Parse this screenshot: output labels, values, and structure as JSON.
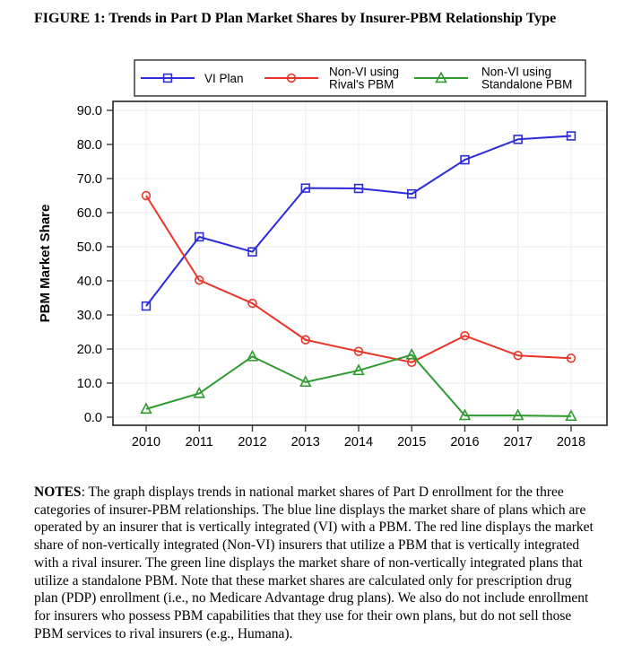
{
  "title": "FIGURE 1: Trends in Part D Plan Market Shares by Insurer-PBM Relationship Type",
  "chart_data": {
    "type": "line",
    "x": [
      2010,
      2011,
      2012,
      2013,
      2014,
      2015,
      2016,
      2017,
      2018
    ],
    "series": [
      {
        "name": "VI Plan",
        "label_lines": [
          "VI Plan"
        ],
        "color": "#2c2cd8",
        "marker": "square",
        "values": [
          32.6,
          52.9,
          48.5,
          67.2,
          67.1,
          65.5,
          75.5,
          81.5,
          82.5
        ]
      },
      {
        "name": "Non-VI using Rival's PBM",
        "label_lines": [
          "Non-VI using",
          "Rival's PBM"
        ],
        "color": "#e93428",
        "marker": "circle",
        "values": [
          65.0,
          40.2,
          33.4,
          22.7,
          19.3,
          16.1,
          23.9,
          18.1,
          17.3
        ]
      },
      {
        "name": "Non-VI using Standalone PBM",
        "label_lines": [
          "Non-VI using",
          "Standalone PBM"
        ],
        "color": "#2e9b2e",
        "marker": "triangle",
        "values": [
          2.4,
          7.0,
          17.8,
          10.3,
          13.7,
          18.3,
          0.5,
          0.5,
          0.3
        ]
      }
    ],
    "ylabel": "PBM Market Share",
    "yticks": [
      0,
      10,
      20,
      30,
      40,
      50,
      60,
      70,
      80,
      90
    ],
    "ylim": [
      -2.5,
      92.5
    ],
    "grid": true,
    "legend_position": "top",
    "colors": {
      "axis": "#3a3a3a",
      "grid": "#ececec",
      "text": "#000000",
      "background": "#ffffff"
    }
  },
  "notes": {
    "label": "NOTES",
    "separator": ": ",
    "text": "The graph displays trends in national market shares of Part D enrollment for the three categories of insurer-PBM relationships. The blue line displays the market share of plans which are operated by an insurer that is vertically integrated (VI) with a PBM. The red line displays the market share of non-vertically integrated (Non-VI) insurers that utilize a PBM that is vertically integrated with a rival insurer. The green line displays the market share of non-vertically integrated plans that utilize a standalone PBM. Note that these market shares are calculated only for prescription drug plan (PDP) enrollment (i.e., no Medicare Advantage drug plans). We also do not include enrollment for insurers who possess PBM capabilities that they use for their own plans, but do not sell those PBM services to rival insurers (e.g., Humana)."
  }
}
